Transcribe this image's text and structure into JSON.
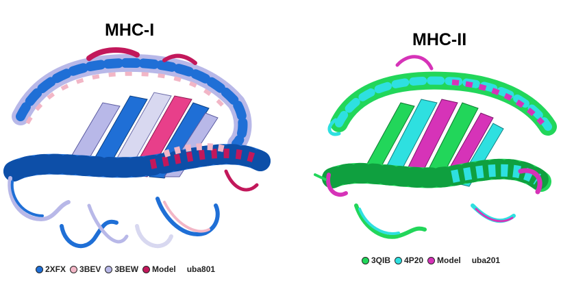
{
  "panels": {
    "left": {
      "title": "MHC-I",
      "legend": [
        {
          "label": "2XFX",
          "color": "#1f6fd6"
        },
        {
          "label": "3BEV",
          "color": "#f2b6c6"
        },
        {
          "label": "3BEW",
          "color": "#b8b8e8"
        },
        {
          "label": "Model",
          "color": "#c2185b"
        }
      ],
      "allele": "uba801"
    },
    "right": {
      "title": "MHC-II",
      "legend": [
        {
          "label": "3QIB",
          "color": "#22d65a"
        },
        {
          "label": "4P20",
          "color": "#2ee0e0"
        },
        {
          "label": "Model",
          "color": "#d633b8"
        }
      ],
      "allele": "uba201"
    }
  }
}
